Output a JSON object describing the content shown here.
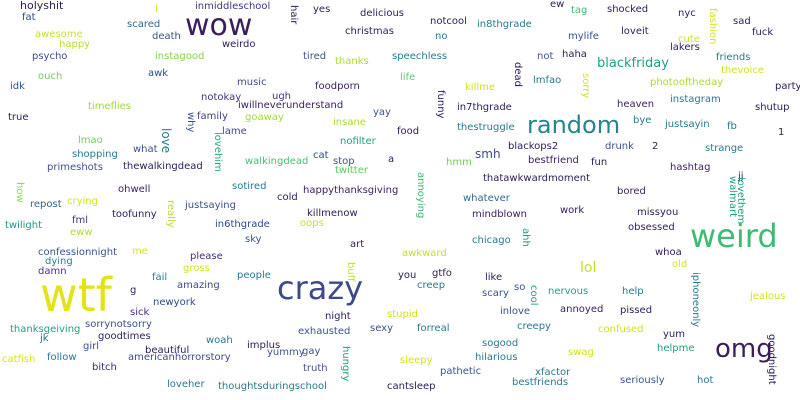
{
  "words": [
    {
      "text": "holyshit",
      "color": "#2d1b57"
    },
    {
      "text": "fat",
      "color": "#2a4a8a"
    },
    {
      "text": "awesome",
      "color": "#c9df2e"
    },
    {
      "text": "happy",
      "color": "#b9de2c"
    },
    {
      "text": "psycho",
      "color": "#3e4a89"
    },
    {
      "text": "ouch",
      "color": "#6fcd5a"
    },
    {
      "text": "idk",
      "color": "#31528d"
    },
    {
      "text": "true",
      "color": "#2d1b57"
    },
    {
      "text": "timeflies",
      "color": "#9bd93c"
    },
    {
      "text": "lmao",
      "color": "#73d056"
    },
    {
      "text": "shopping",
      "color": "#2a788e"
    },
    {
      "text": "primeshots",
      "color": "#3b528b"
    },
    {
      "text": "how",
      "color": "#8fd744"
    },
    {
      "text": "repost",
      "color": "#35608d"
    },
    {
      "text": "crying",
      "color": "#d4e21a"
    },
    {
      "text": "twilight",
      "color": "#1f968b"
    },
    {
      "text": "fml",
      "color": "#46327e"
    },
    {
      "text": "eww",
      "color": "#addc30"
    },
    {
      "text": "confessionnight",
      "color": "#3b528b"
    },
    {
      "text": "dying",
      "color": "#26828e"
    },
    {
      "text": "damn",
      "color": "#46337f"
    },
    {
      "text": "wtf",
      "color": "#e3e418"
    },
    {
      "text": "thanksgeiving",
      "color": "#1f9e89"
    },
    {
      "text": "jk",
      "color": "#31688e"
    },
    {
      "text": "catfish",
      "color": "#d8e219"
    },
    {
      "text": "follow",
      "color": "#2a788e"
    },
    {
      "text": "girl",
      "color": "#3e4989"
    },
    {
      "text": "goodtimes",
      "color": "#2d1b57"
    },
    {
      "text": "bitch",
      "color": "#3b2a70"
    },
    {
      "text": "sorrynotsorry",
      "color": "#3b528b"
    },
    {
      "text": "i",
      "color": "#d5e21a"
    },
    {
      "text": "inmiddleschool",
      "color": "#46337f"
    },
    {
      "text": "scared",
      "color": "#31688e"
    },
    {
      "text": "death",
      "color": "#3b528b"
    },
    {
      "text": "wow",
      "color": "#3b1d5c"
    },
    {
      "text": "weirdo",
      "color": "#2d1b57"
    },
    {
      "text": "instagood",
      "color": "#84d44b"
    },
    {
      "text": "hair",
      "color": "#2d1b57"
    },
    {
      "text": "awk",
      "color": "#2a4a8a"
    },
    {
      "text": "music",
      "color": "#3e4a89"
    },
    {
      "text": "notokay",
      "color": "#46327e"
    },
    {
      "text": "ugh",
      "color": "#46327e"
    },
    {
      "text": "why",
      "color": "#3b528b"
    },
    {
      "text": "family",
      "color": "#404387"
    },
    {
      "text": "lame",
      "color": "#3e4a89"
    },
    {
      "text": "love",
      "color": "#2a788e"
    },
    {
      "text": "what",
      "color": "#3b528b"
    },
    {
      "text": "lovehim",
      "color": "#22a884"
    },
    {
      "text": "thewalkingdead",
      "color": "#2d1b57"
    },
    {
      "text": "goaway",
      "color": "#a2da37"
    },
    {
      "text": "walkingdead",
      "color": "#44bf70"
    },
    {
      "text": "iwillneverunderstand",
      "color": "#3b1d5c"
    },
    {
      "text": "ohwell",
      "color": "#3b1d5c"
    },
    {
      "text": "sotired",
      "color": "#2a788e"
    },
    {
      "text": "really",
      "color": "#b5de2b"
    },
    {
      "text": "justsaying",
      "color": "#3b528b"
    },
    {
      "text": "toofunny",
      "color": "#2d1b57"
    },
    {
      "text": "in6thgrade",
      "color": "#2a4a8a"
    },
    {
      "text": "sky",
      "color": "#3b528b"
    },
    {
      "text": "please",
      "color": "#4a2a7f"
    },
    {
      "text": "me",
      "color": "#e3e418"
    },
    {
      "text": "gross",
      "color": "#d5e21a"
    },
    {
      "text": "fail",
      "color": "#26828e"
    },
    {
      "text": "people",
      "color": "#2a788e"
    },
    {
      "text": "amazing",
      "color": "#3e4989"
    },
    {
      "text": "g",
      "color": "#2d1b57"
    },
    {
      "text": "newyork",
      "color": "#2a4a8a"
    },
    {
      "text": "sick",
      "color": "#4a2a7f"
    },
    {
      "text": "woah",
      "color": "#2a788e"
    },
    {
      "text": "beautiful",
      "color": "#2d1b57"
    },
    {
      "text": "implus",
      "color": "#2d1b57"
    },
    {
      "text": "yummy",
      "color": "#3b528b"
    },
    {
      "text": "americanhorrorstory",
      "color": "#3e4a89"
    },
    {
      "text": "loveher",
      "color": "#2a788e"
    },
    {
      "text": "thoughtsduringschool",
      "color": "#2a788e"
    },
    {
      "text": "crazy",
      "color": "#3e4989"
    },
    {
      "text": "yes",
      "color": "#2d1b57"
    },
    {
      "text": "delicious",
      "color": "#2d1b57"
    },
    {
      "text": "notcool",
      "color": "#2d1b57"
    },
    {
      "text": "christmas",
      "color": "#2d1b57"
    },
    {
      "text": "tired",
      "color": "#3b528b"
    },
    {
      "text": "thanks",
      "color": "#addc30"
    },
    {
      "text": "foodporn",
      "color": "#3b1d5c"
    },
    {
      "text": "insane",
      "color": "#addc30"
    },
    {
      "text": "nofilter",
      "color": "#1f9e89"
    },
    {
      "text": "yay",
      "color": "#3b528b"
    },
    {
      "text": "cat",
      "color": "#2a4a8a"
    },
    {
      "text": "stop",
      "color": "#3b528b"
    },
    {
      "text": "twitter",
      "color": "#5ec962"
    },
    {
      "text": "a",
      "color": "#2d1b57"
    },
    {
      "text": "cold",
      "color": "#2d1b57"
    },
    {
      "text": "happythanksgiving",
      "color": "#3b1d5c"
    },
    {
      "text": "oops",
      "color": "#c8e020"
    },
    {
      "text": "killmenow",
      "color": "#2d1b57"
    },
    {
      "text": "art",
      "color": "#3b1d5c"
    },
    {
      "text": "buff",
      "color": "#c8e020"
    },
    {
      "text": "night",
      "color": "#2d1b57"
    },
    {
      "text": "exhausted",
      "color": "#3b528b"
    },
    {
      "text": "truth",
      "color": "#3b528b"
    },
    {
      "text": "gay",
      "color": "#3b528b"
    },
    {
      "text": "hungry",
      "color": "#1fa188"
    },
    {
      "text": "in8thgrade",
      "color": "#2a788e"
    },
    {
      "text": "no",
      "color": "#2a788e"
    },
    {
      "text": "speechless",
      "color": "#2a788e"
    },
    {
      "text": "life",
      "color": "#5ec962"
    },
    {
      "text": "funny",
      "color": "#2d1b57"
    },
    {
      "text": "killme",
      "color": "#d5e21a"
    },
    {
      "text": "food",
      "color": "#2d1b57"
    },
    {
      "text": "in7thgrade",
      "color": "#2d1b57"
    },
    {
      "text": "thestruggle",
      "color": "#2a788e"
    },
    {
      "text": "random",
      "color": "#25858e"
    },
    {
      "text": "smh",
      "color": "#3e4989"
    },
    {
      "text": "hmm",
      "color": "#6ece58"
    },
    {
      "text": "annoying",
      "color": "#3fbc73"
    },
    {
      "text": "thatawkwardmoment",
      "color": "#2d1b57"
    },
    {
      "text": "whatever",
      "color": "#31688e"
    },
    {
      "text": "mindblown",
      "color": "#3b1d5c"
    },
    {
      "text": "awkward",
      "color": "#c8e020"
    },
    {
      "text": "you",
      "color": "#2d1b57"
    },
    {
      "text": "gtfo",
      "color": "#2d1b57"
    },
    {
      "text": "creep",
      "color": "#2a788e"
    },
    {
      "text": "stupid",
      "color": "#d5e21a"
    },
    {
      "text": "forreal",
      "color": "#2a788e"
    },
    {
      "text": "sexy",
      "color": "#3b528b"
    },
    {
      "text": "sleepy",
      "color": "#d5e21a"
    },
    {
      "text": "pathetic",
      "color": "#3b528b"
    },
    {
      "text": "cantsleep",
      "color": "#2d1b57"
    },
    {
      "text": "ew",
      "color": "#2d1b57"
    },
    {
      "text": "tag",
      "color": "#3fbc73"
    },
    {
      "text": "mylife",
      "color": "#3b528b"
    },
    {
      "text": "haha",
      "color": "#2d1b57"
    },
    {
      "text": "not",
      "color": "#3b528b"
    },
    {
      "text": "lmfao",
      "color": "#2a788e"
    },
    {
      "text": "dead",
      "color": "#2d1b57"
    },
    {
      "text": "sorry",
      "color": "#d5e21a"
    },
    {
      "text": "blackfriday",
      "color": "#1f9e89"
    },
    {
      "text": "blackops2",
      "color": "#2d1b57"
    },
    {
      "text": "bestfriend",
      "color": "#3b1d5c"
    },
    {
      "text": "fun",
      "color": "#2d1b57"
    },
    {
      "text": "drunk",
      "color": "#3b528b"
    },
    {
      "text": "2",
      "color": "#2d1b57"
    },
    {
      "text": "jj",
      "color": "#3b1d5c"
    },
    {
      "text": "bored",
      "color": "#3b1d5c"
    },
    {
      "text": "work",
      "color": "#2d1b57"
    },
    {
      "text": "chicago",
      "color": "#2a788e"
    },
    {
      "text": "ahh",
      "color": "#1f9e89"
    },
    {
      "text": "like",
      "color": "#2d1b57"
    },
    {
      "text": "scary",
      "color": "#3b528b"
    },
    {
      "text": "so",
      "color": "#3b528b"
    },
    {
      "text": "cool",
      "color": "#1f9e89"
    },
    {
      "text": "inlove",
      "color": "#3b528b"
    },
    {
      "text": "nervous",
      "color": "#1fa188"
    },
    {
      "text": "annoyed",
      "color": "#3b1d5c"
    },
    {
      "text": "creepy",
      "color": "#2a788e"
    },
    {
      "text": "sogood",
      "color": "#2a788e"
    },
    {
      "text": "hilarious",
      "color": "#2a788e"
    },
    {
      "text": "xfactor",
      "color": "#2a788e"
    },
    {
      "text": "bestfriends",
      "color": "#2a788e"
    },
    {
      "text": "swag",
      "color": "#d5e21a"
    },
    {
      "text": "lol",
      "color": "#c8e020"
    },
    {
      "text": "shocked",
      "color": "#2d1b57"
    },
    {
      "text": "loveit",
      "color": "#2d1b57"
    },
    {
      "text": "nyc",
      "color": "#2d1b57"
    },
    {
      "text": "fashion",
      "color": "#d5e21a"
    },
    {
      "text": "cute",
      "color": "#d5e21a"
    },
    {
      "text": "lakers",
      "color": "#2d1b57"
    },
    {
      "text": "photooftheday",
      "color": "#addc30"
    },
    {
      "text": "instagram",
      "color": "#2a788e"
    },
    {
      "text": "heaven",
      "color": "#3b1d5c"
    },
    {
      "text": "bye",
      "color": "#2a788e"
    },
    {
      "text": "justsayin",
      "color": "#2a788e"
    },
    {
      "text": "fb",
      "color": "#2a788e"
    },
    {
      "text": "hashtag",
      "color": "#3b1d5c"
    },
    {
      "text": "strange",
      "color": "#2a788e"
    },
    {
      "text": "missyou",
      "color": "#2d1b57"
    },
    {
      "text": "obsessed",
      "color": "#2d1b57"
    },
    {
      "text": "walmart",
      "color": "#1f9e89"
    },
    {
      "text": "lovethem",
      "color": "#1f9e89"
    },
    {
      "text": "weird",
      "color": "#3fbc73"
    },
    {
      "text": "whoa",
      "color": "#2d1b57"
    },
    {
      "text": "old",
      "color": "#d5e21a"
    },
    {
      "text": "help",
      "color": "#2a788e"
    },
    {
      "text": "pissed",
      "color": "#2d1b57"
    },
    {
      "text": "confused",
      "color": "#d5e21a"
    },
    {
      "text": "iphoneonly",
      "color": "#2a788e"
    },
    {
      "text": "yum",
      "color": "#2d1b57"
    },
    {
      "text": "helpme",
      "color": "#1f9e89"
    },
    {
      "text": "omg",
      "color": "#3b1d5c"
    },
    {
      "text": "seriously",
      "color": "#3b528b"
    },
    {
      "text": "hot",
      "color": "#2a788e"
    },
    {
      "text": "sad",
      "color": "#2d1b57"
    },
    {
      "text": "fuck",
      "color": "#2d1b57"
    },
    {
      "text": "friends",
      "color": "#2a788e"
    },
    {
      "text": "thevoice",
      "color": "#d5e21a"
    },
    {
      "text": "party",
      "color": "#2d1b57"
    },
    {
      "text": "shutup",
      "color": "#2d1b57"
    },
    {
      "text": "1",
      "color": "#2d1b57"
    },
    {
      "text": "jealous",
      "color": "#d5e21a"
    },
    {
      "text": "goodnight",
      "color": "#2d1b57"
    }
  ]
}
